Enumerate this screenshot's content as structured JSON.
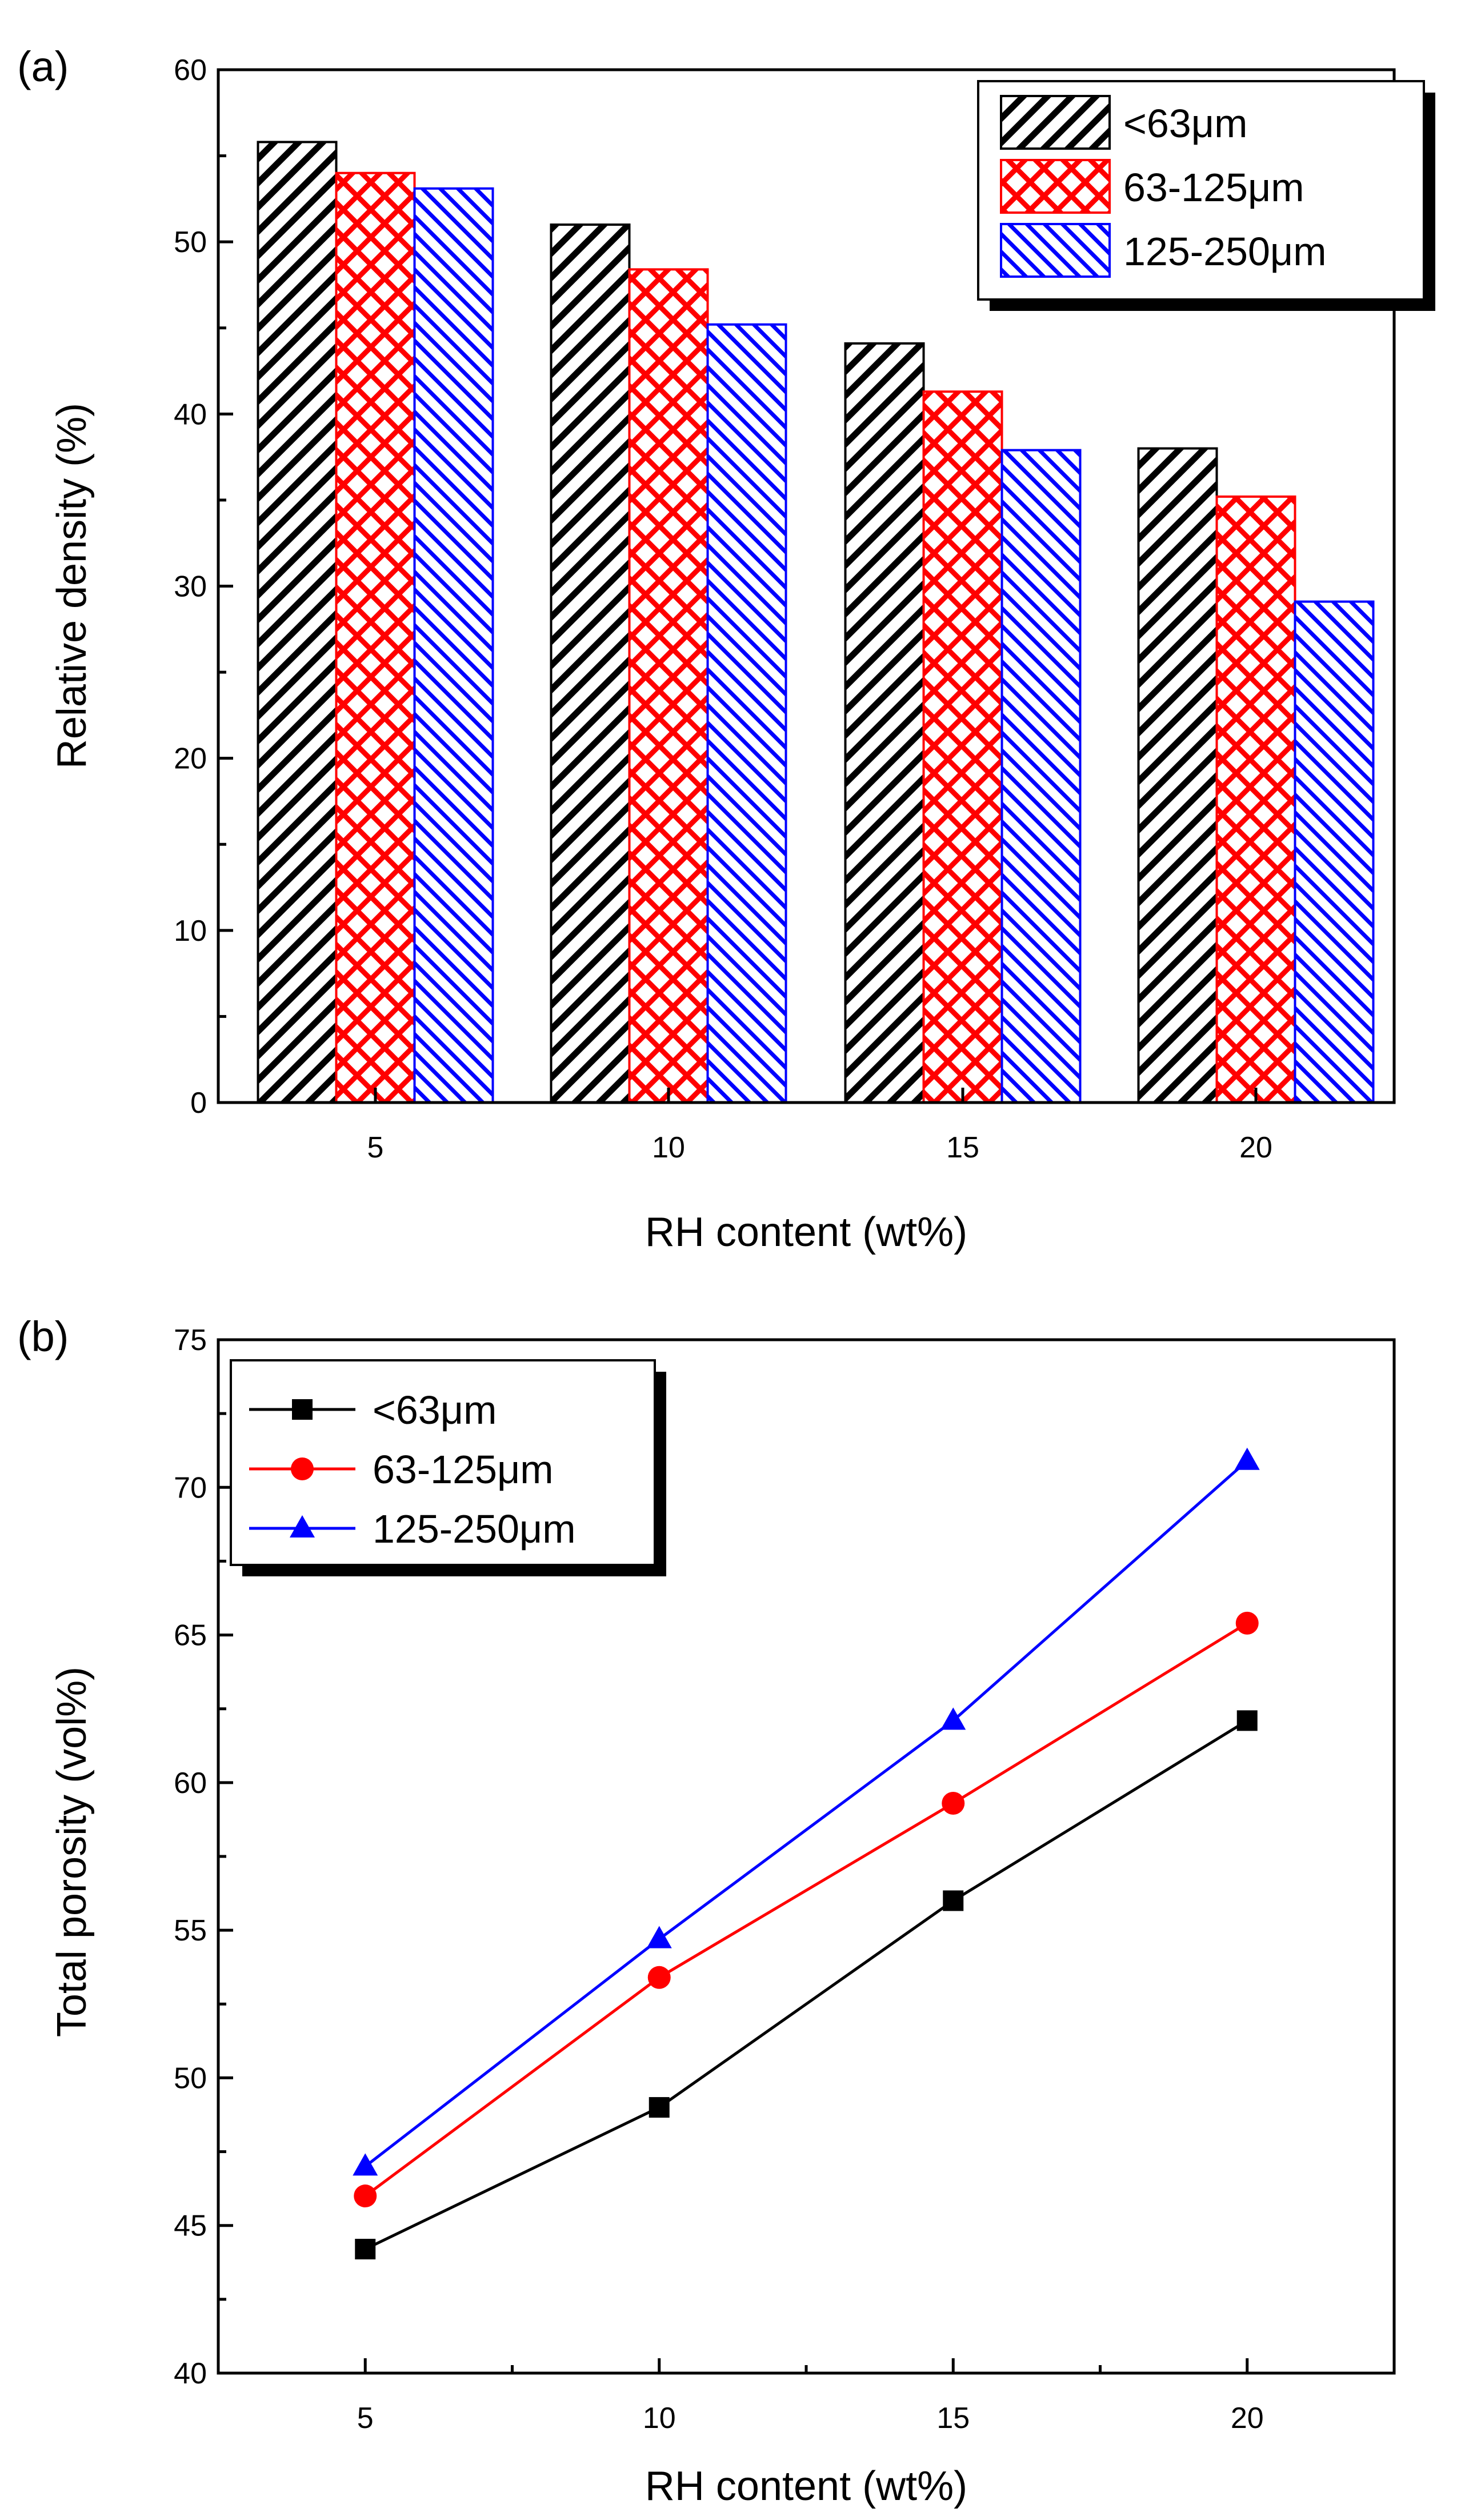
{
  "chart_data": [
    {
      "type": "bar",
      "panel_label": "(a)",
      "title": "",
      "xlabel": "RH content (wt%)",
      "ylabel": "Relative density (%)",
      "categories": [
        "5",
        "10",
        "15",
        "20"
      ],
      "ylim": [
        0,
        60
      ],
      "yticks": [
        0,
        10,
        20,
        30,
        40,
        50,
        60
      ],
      "legend_position": "top-right",
      "series": [
        {
          "name": "<63μm",
          "values": [
            55.8,
            51.0,
            44.1,
            38.0
          ],
          "color": "#000000",
          "pattern": "diagonal"
        },
        {
          "name": "63-125μm",
          "values": [
            54.0,
            48.4,
            41.3,
            35.2
          ],
          "color": "#ff0000",
          "pattern": "crosshatch"
        },
        {
          "name": "125-250μm",
          "values": [
            53.1,
            45.2,
            37.9,
            29.1
          ],
          "color": "#0000ff",
          "pattern": "dense-diagonal"
        }
      ]
    },
    {
      "type": "line",
      "panel_label": "(b)",
      "title": "",
      "xlabel": "RH content (wt%)",
      "ylabel": "Total porosity (vol%)",
      "x": [
        5,
        10,
        15,
        20
      ],
      "xlim": [
        2.5,
        22.5
      ],
      "xticks": [
        5,
        10,
        15,
        20
      ],
      "ylim": [
        40,
        75
      ],
      "yticks": [
        40,
        45,
        50,
        55,
        60,
        65,
        70,
        75
      ],
      "legend_position": "top-left",
      "series": [
        {
          "name": "<63μm",
          "values": [
            44.2,
            49.0,
            56.0,
            62.1
          ],
          "color": "#000000",
          "marker": "square"
        },
        {
          "name": "63-125μm",
          "values": [
            46.0,
            53.4,
            59.3,
            65.4
          ],
          "color": "#ff0000",
          "marker": "circle"
        },
        {
          "name": "125-250μm",
          "values": [
            47.0,
            54.7,
            62.1,
            70.9
          ],
          "color": "#0000ff",
          "marker": "triangle"
        }
      ]
    }
  ]
}
